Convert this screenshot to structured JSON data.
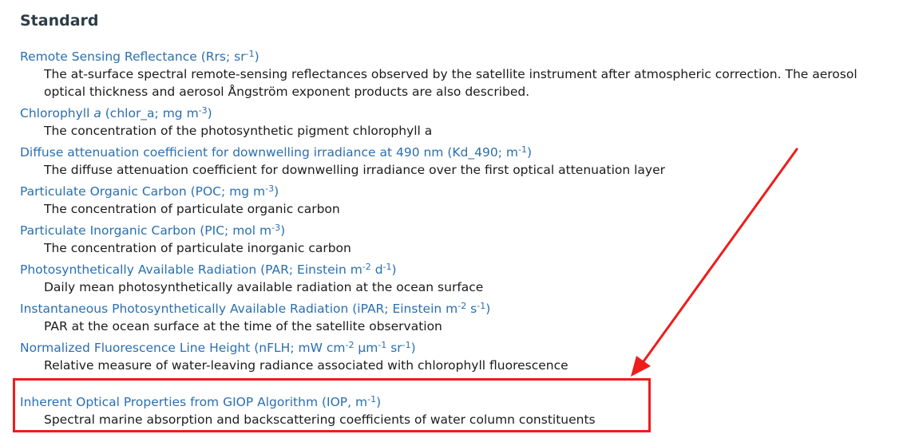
{
  "section": {
    "title": "Standard"
  },
  "products": [
    {
      "name": "Remote Sensing Reflectance (Rrs; sr",
      "sup1": "-1",
      "mid1": ")",
      "description": "The at-surface spectral remote-sensing reflectances observed by the satellite instrument after atmospheric correction. The aerosol optical thickness and aerosol Ångström exponent products are also described."
    },
    {
      "name_pre": "Chlorophyll ",
      "name_ital": "a",
      "name": " (chlor_a; mg m",
      "sup1": "-3",
      "mid1": ")",
      "description": "The concentration of the photosynthetic pigment chlorophyll a"
    },
    {
      "name": "Diffuse attenuation coefficient for downwelling irradiance at 490 nm (Kd_490; m",
      "sup1": "-1",
      "mid1": ")",
      "description": "The diffuse attenuation coefficient for downwelling irradiance over the first optical attenuation layer"
    },
    {
      "name": "Particulate Organic Carbon (POC; mg m",
      "sup1": "-3",
      "mid1": ")",
      "description": "The concentration of particulate organic carbon"
    },
    {
      "name": "Particulate Inorganic Carbon (PIC; mol m",
      "sup1": "-3",
      "mid1": ")",
      "description": "The concentration of particulate inorganic carbon"
    },
    {
      "name": "Photosynthetically Available Radiation (PAR; Einstein m",
      "sup1": "-2",
      "mid1": " d",
      "sup2": "-1",
      "mid2": ")",
      "description": "Daily mean photosynthetically available radiation at the ocean surface"
    },
    {
      "name": "Instantaneous Photosynthetically Available Radiation (iPAR; Einstein m",
      "sup1": "-2",
      "mid1": " s",
      "sup2": "-1",
      "mid2": ")",
      "description": "PAR at the ocean surface at the time of the satellite observation"
    },
    {
      "name": "Normalized Fluorescence Line Height (nFLH; mW cm",
      "sup1": "-2",
      "mid1": " μm",
      "sup2": "-1",
      "mid2": " sr",
      "sup3": "-1",
      "mid3": ")",
      "description": "Relative measure of water-leaving radiance associated with chlorophyll fluorescence"
    },
    {
      "name": "Inherent Optical Properties from GIOP Algorithm (IOP, m",
      "sup1": "-1",
      "mid1": ")",
      "description": "Spectral marine absorption and backscattering coefficients of water column constituents"
    }
  ],
  "annotation": {
    "color": "#ee1c1c",
    "shape": "arrow-and-box"
  }
}
